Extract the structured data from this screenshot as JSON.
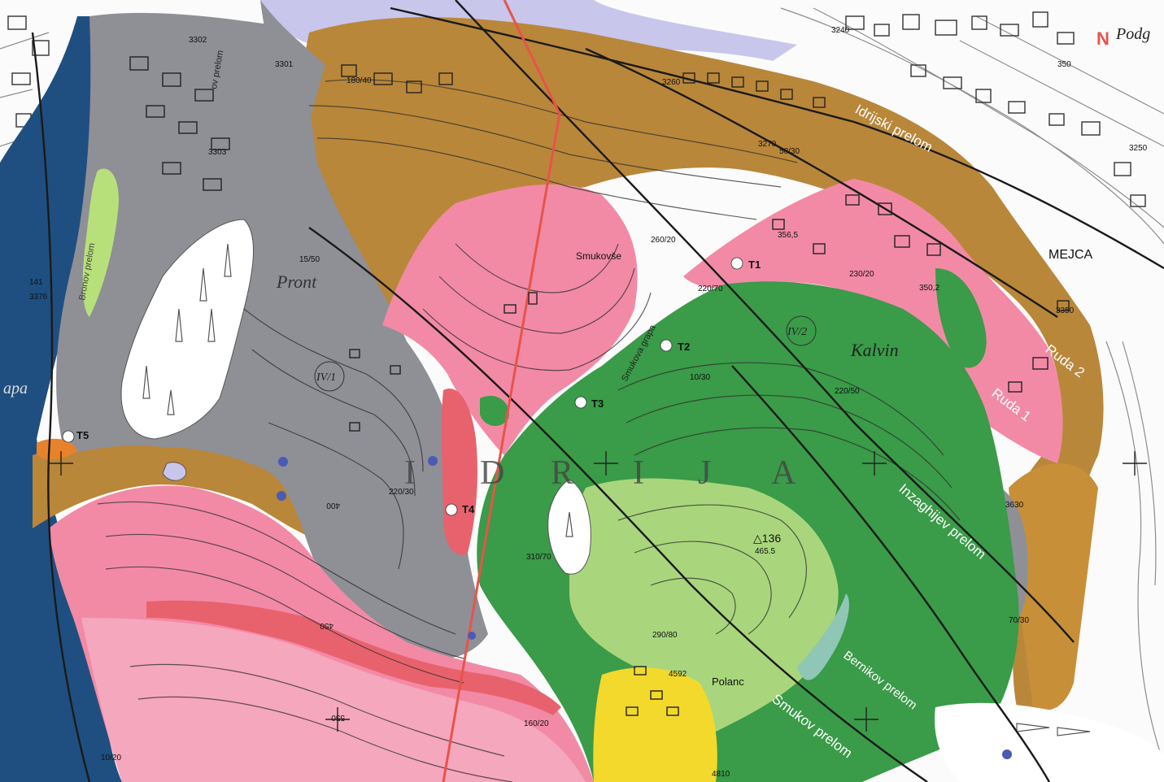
{
  "north_label": "N",
  "place_labels": {
    "podg": "Podg",
    "mejca": "MEJCA",
    "smukovse": "Smukovše",
    "kalvin": "Kalvin",
    "pront": "Pront",
    "polanc": "Polanc",
    "idrija_letters": [
      "I",
      "D",
      "R",
      "I",
      "J",
      "A"
    ],
    "apa": "apa"
  },
  "fault_labels": {
    "idrijski": "Idrijski prelom",
    "inzaghijev": "Inzaghijev prelom",
    "bernikov": "Bernikov prelom",
    "smukov": "Smukov prelom",
    "ruda2": "Ruda 2",
    "ruda1": "Ruda 1",
    "smukova_grapa": "Smukova grapa",
    "ov_prelom": "ov prelom",
    "bronov": "Bronov prelom"
  },
  "sites": [
    {
      "id": "T1",
      "label": "T1"
    },
    {
      "id": "T2",
      "label": "T2"
    },
    {
      "id": "T3",
      "label": "T3"
    },
    {
      "id": "T4",
      "label": "T4"
    },
    {
      "id": "T5",
      "label": "T5"
    }
  ],
  "survey_labels": {
    "summit": "△136",
    "summit_elev": "465.5",
    "zone_iv1": "IV/1",
    "zone_iv2": "IV/2",
    "p3302": "3302",
    "p3301": "3301",
    "p3303": "3303",
    "p3240": "3240",
    "p3250": "3250",
    "p3260": "3260",
    "p3270": "3270",
    "p3350": "3350",
    "p3630": "3630",
    "p4592": "4592",
    "p4810": "4810",
    "p350_2": "350,2",
    "p356_5": "356,5",
    "c350": "350",
    "c550": "550",
    "c400": "400",
    "c450": "450",
    "d180_40": "180/40",
    "d260_20": "260/20",
    "d230_20": "230/20",
    "d220_70": "220/70",
    "d220_50": "220/50",
    "d220_30": "220/30",
    "d310_70": "310/70",
    "d290_80": "290/80",
    "d160_20": "160/20",
    "d50_30": "50/30",
    "d10_30": "10/30",
    "d70_30": "70/30",
    "d15_50": "15/50",
    "d10_20": "10/20",
    "d141": "141",
    "d3376": "3376"
  },
  "colors": {
    "dolomite_brown": "#b9873a",
    "shale_gray": "#8f8f96",
    "pink": "#f28aa6",
    "dark_green": "#3a9b48",
    "light_green": "#a9d67c",
    "lime": "#b8e07a",
    "navy": "#1f4f80",
    "yellow": "#f2d92c",
    "lavender": "#c9c6ec",
    "red_fault": "#e8534a",
    "label_white": "#ffffff"
  }
}
